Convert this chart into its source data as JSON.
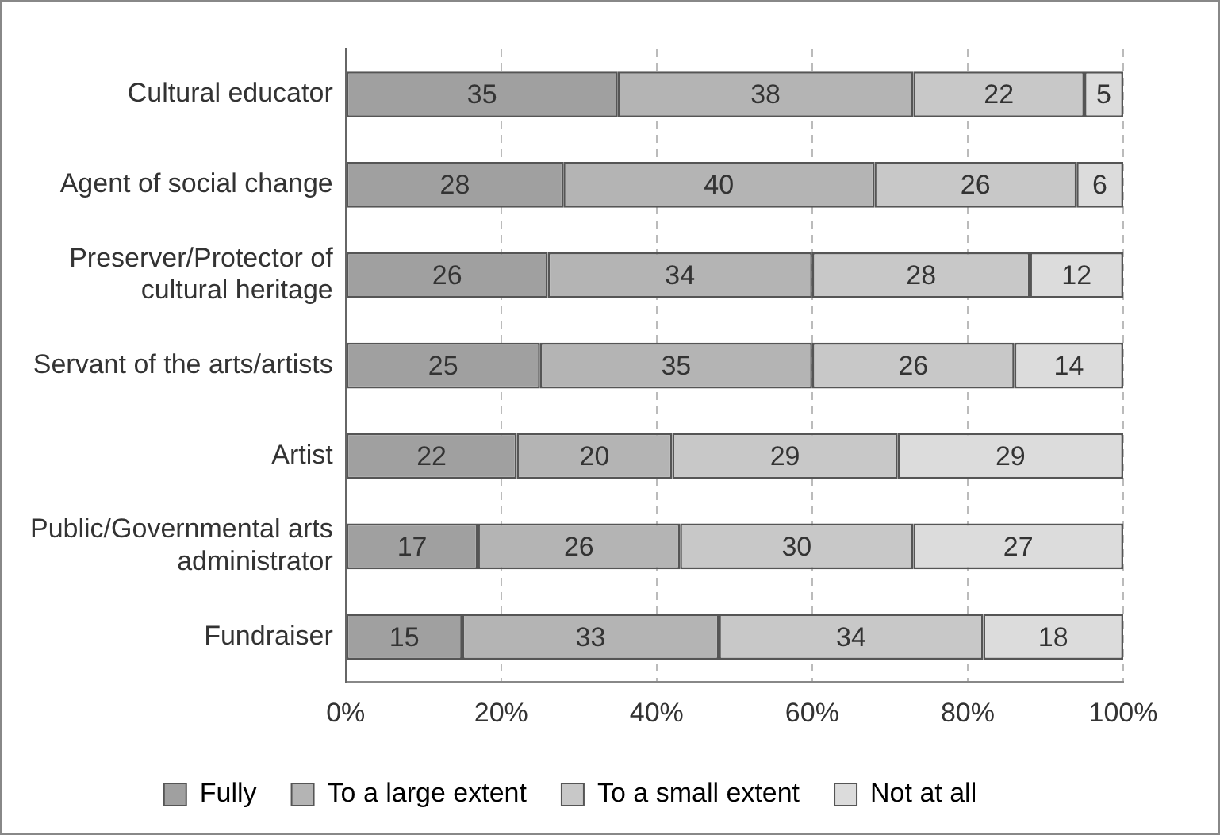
{
  "chart_data": {
    "type": "bar",
    "orientation": "horizontal",
    "stacked": true,
    "data_labels": true,
    "grid": "x",
    "legend": "bottom",
    "categories": [
      "Cultural educator",
      "Agent of social change",
      "Preserver/Protector of cultural heritage",
      "Servant of the arts/artists",
      "Artist",
      "Public/Governmental arts administrator",
      "Fundraiser"
    ],
    "series": [
      {
        "name": "Fully",
        "color": "#a0a0a0",
        "values": [
          35,
          28,
          26,
          25,
          22,
          17,
          15
        ]
      },
      {
        "name": "To a large extent",
        "color": "#b4b4b4",
        "values": [
          38,
          40,
          34,
          35,
          20,
          26,
          33
        ]
      },
      {
        "name": "To a small extent",
        "color": "#c8c8c8",
        "values": [
          22,
          26,
          28,
          26,
          29,
          30,
          34
        ]
      },
      {
        "name": "Not at all",
        "color": "#dcdcdc",
        "values": [
          5,
          6,
          12,
          14,
          29,
          27,
          18
        ]
      }
    ],
    "xlim": [
      0,
      100
    ],
    "xticks": [
      {
        "value": 0,
        "label": "0%"
      },
      {
        "value": 20,
        "label": "20%"
      },
      {
        "value": 40,
        "label": "40%"
      },
      {
        "value": 60,
        "label": "60%"
      },
      {
        "value": 80,
        "label": "80%"
      },
      {
        "value": 100,
        "label": "100%"
      }
    ]
  }
}
